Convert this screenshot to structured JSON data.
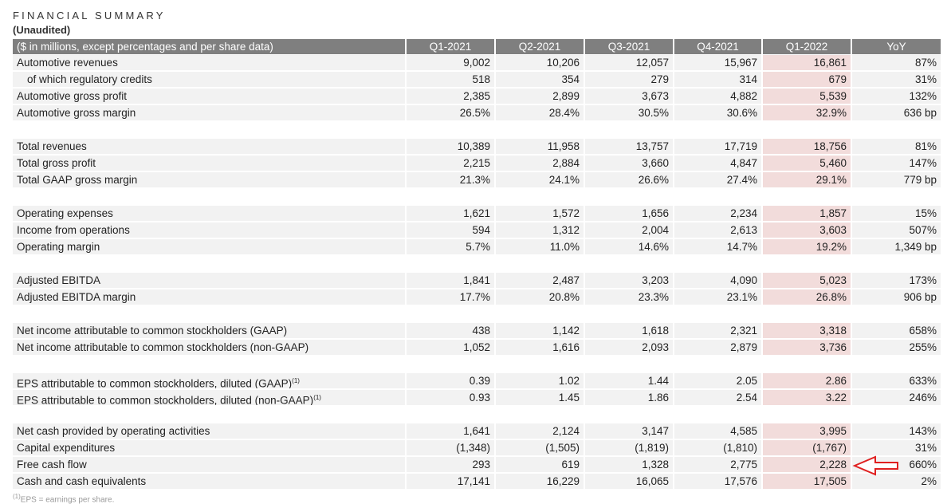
{
  "header": {
    "title": "FINANCIAL SUMMARY",
    "subtitle": "(Unaudited)"
  },
  "table": {
    "columns": [
      "($ in millions, except percentages and per share data)",
      "Q1-2021",
      "Q2-2021",
      "Q3-2021",
      "Q4-2021",
      "Q1-2022",
      "YoY"
    ],
    "groups": [
      {
        "rows": [
          {
            "cells": [
              "Automotive revenues",
              "9,002",
              "10,206",
              "12,057",
              "15,967",
              "16,861",
              "87%"
            ]
          },
          {
            "cells": [
              "of which regulatory credits",
              "518",
              "354",
              "279",
              "314",
              "679",
              "31%"
            ],
            "indent": true
          },
          {
            "cells": [
              "Automotive gross profit",
              "2,385",
              "2,899",
              "3,673",
              "4,882",
              "5,539",
              "132%"
            ]
          },
          {
            "cells": [
              "Automotive gross margin",
              "26.5%",
              "28.4%",
              "30.5%",
              "30.6%",
              "32.9%",
              "636 bp"
            ]
          }
        ]
      },
      {
        "rows": [
          {
            "cells": [
              "Total revenues",
              "10,389",
              "11,958",
              "13,757",
              "17,719",
              "18,756",
              "81%"
            ]
          },
          {
            "cells": [
              "Total gross profit",
              "2,215",
              "2,884",
              "3,660",
              "4,847",
              "5,460",
              "147%"
            ]
          },
          {
            "cells": [
              "Total GAAP gross margin",
              "21.3%",
              "24.1%",
              "26.6%",
              "27.4%",
              "29.1%",
              "779 bp"
            ]
          }
        ]
      },
      {
        "rows": [
          {
            "cells": [
              "Operating expenses",
              "1,621",
              "1,572",
              "1,656",
              "2,234",
              "1,857",
              "15%"
            ]
          },
          {
            "cells": [
              "Income from operations",
              "594",
              "1,312",
              "2,004",
              "2,613",
              "3,603",
              "507%"
            ]
          },
          {
            "cells": [
              "Operating margin",
              "5.7%",
              "11.0%",
              "14.6%",
              "14.7%",
              "19.2%",
              "1,349 bp"
            ]
          }
        ]
      },
      {
        "rows": [
          {
            "cells": [
              "Adjusted EBITDA",
              "1,841",
              "2,487",
              "3,203",
              "4,090",
              "5,023",
              "173%"
            ]
          },
          {
            "cells": [
              "Adjusted EBITDA margin",
              "17.7%",
              "20.8%",
              "23.3%",
              "23.1%",
              "26.8%",
              "906 bp"
            ]
          }
        ]
      },
      {
        "rows": [
          {
            "cells": [
              "Net income attributable to common stockholders (GAAP)",
              "438",
              "1,142",
              "1,618",
              "2,321",
              "3,318",
              "658%"
            ]
          },
          {
            "cells": [
              "Net income attributable to common stockholders (non-GAAP)",
              "1,052",
              "1,616",
              "2,093",
              "2,879",
              "3,736",
              "255%"
            ]
          }
        ]
      },
      {
        "rows": [
          {
            "cells": [
              "EPS attributable to common stockholders, diluted (GAAP)",
              "0.39",
              "1.02",
              "1.44",
              "2.05",
              "2.86",
              "633%"
            ],
            "mark": "(1)"
          },
          {
            "cells": [
              "EPS attributable to common stockholders, diluted (non-GAAP)",
              "0.93",
              "1.45",
              "1.86",
              "2.54",
              "3.22",
              "246%"
            ],
            "mark": "(1)"
          }
        ]
      },
      {
        "rows": [
          {
            "cells": [
              "Net cash provided by operating activities",
              "1,641",
              "2,124",
              "3,147",
              "4,585",
              "3,995",
              "143%"
            ]
          },
          {
            "cells": [
              "Capital expenditures",
              "(1,348)",
              "(1,505)",
              "(1,819)",
              "(1,810)",
              "(1,767)",
              "31%"
            ]
          },
          {
            "cells": [
              "Free cash flow",
              "293",
              "619",
              "1,328",
              "2,775",
              "2,228",
              "660%"
            ]
          },
          {
            "cells": [
              "Cash and cash equivalents",
              "17,141",
              "16,229",
              "16,065",
              "17,576",
              "17,505",
              "2%"
            ]
          }
        ]
      }
    ]
  },
  "footnote": {
    "mark": "(1)",
    "text": "EPS = earnings per share."
  }
}
